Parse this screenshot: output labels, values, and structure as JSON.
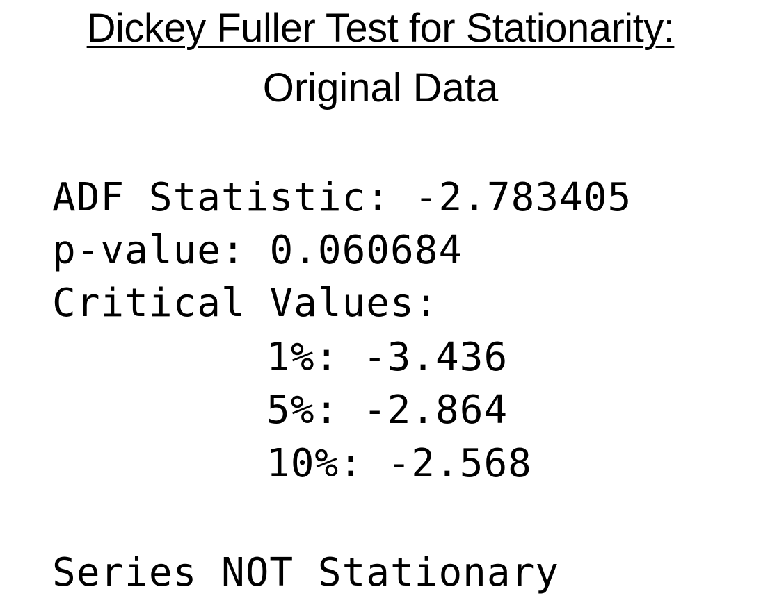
{
  "title": "Dickey Fuller Test for Stationarity:",
  "subtitle": "Original Data",
  "results": {
    "adf_label": "ADF Statistic:",
    "adf_value": "-2.783405",
    "pvalue_label": "p-value:",
    "pvalue_value": "0.060684",
    "critical_label": "Critical Values:",
    "critical": [
      {
        "level": "1%:",
        "value": "-3.436"
      },
      {
        "level": "5%:",
        "value": "-2.864"
      },
      {
        "level": "10%:",
        "value": "-2.568"
      }
    ],
    "conclusion": "Series NOT Stationary"
  }
}
